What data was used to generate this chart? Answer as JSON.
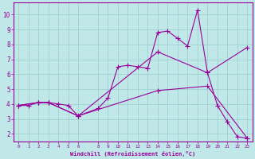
{
  "bg_color": "#c0e8e8",
  "line_color": "#990099",
  "grid_color": "#99cccc",
  "xlabel": "Windchill (Refroidissement éolien,°C)",
  "tick_color": "#990099",
  "xlim": [
    -0.5,
    23.5
  ],
  "ylim": [
    1.5,
    10.8
  ],
  "xticks": [
    0,
    1,
    2,
    3,
    4,
    5,
    6,
    8,
    9,
    10,
    11,
    12,
    13,
    14,
    15,
    16,
    17,
    18,
    19,
    20,
    21,
    22,
    23
  ],
  "yticks": [
    2,
    3,
    4,
    5,
    6,
    7,
    8,
    9,
    10
  ],
  "line1_x": [
    0,
    1,
    2,
    3,
    4,
    5,
    6,
    8,
    9,
    10,
    11,
    12,
    13,
    14,
    15,
    16,
    17,
    18,
    19,
    20,
    21,
    22,
    23
  ],
  "line1_y": [
    3.9,
    3.9,
    4.1,
    4.1,
    4.0,
    3.9,
    3.2,
    3.7,
    4.4,
    6.5,
    6.6,
    6.5,
    6.4,
    8.8,
    8.9,
    8.4,
    7.9,
    10.3,
    6.1,
    3.9,
    2.8,
    1.8,
    1.7
  ],
  "line2_x": [
    0,
    2,
    3,
    6,
    14,
    19,
    23
  ],
  "line2_y": [
    3.9,
    4.1,
    4.1,
    3.2,
    7.5,
    6.1,
    7.8
  ],
  "line3_x": [
    0,
    2,
    3,
    6,
    14,
    19,
    23
  ],
  "line3_y": [
    3.9,
    4.1,
    4.1,
    3.2,
    4.9,
    5.2,
    1.7
  ],
  "linewidth": 0.8,
  "markersize": 4
}
